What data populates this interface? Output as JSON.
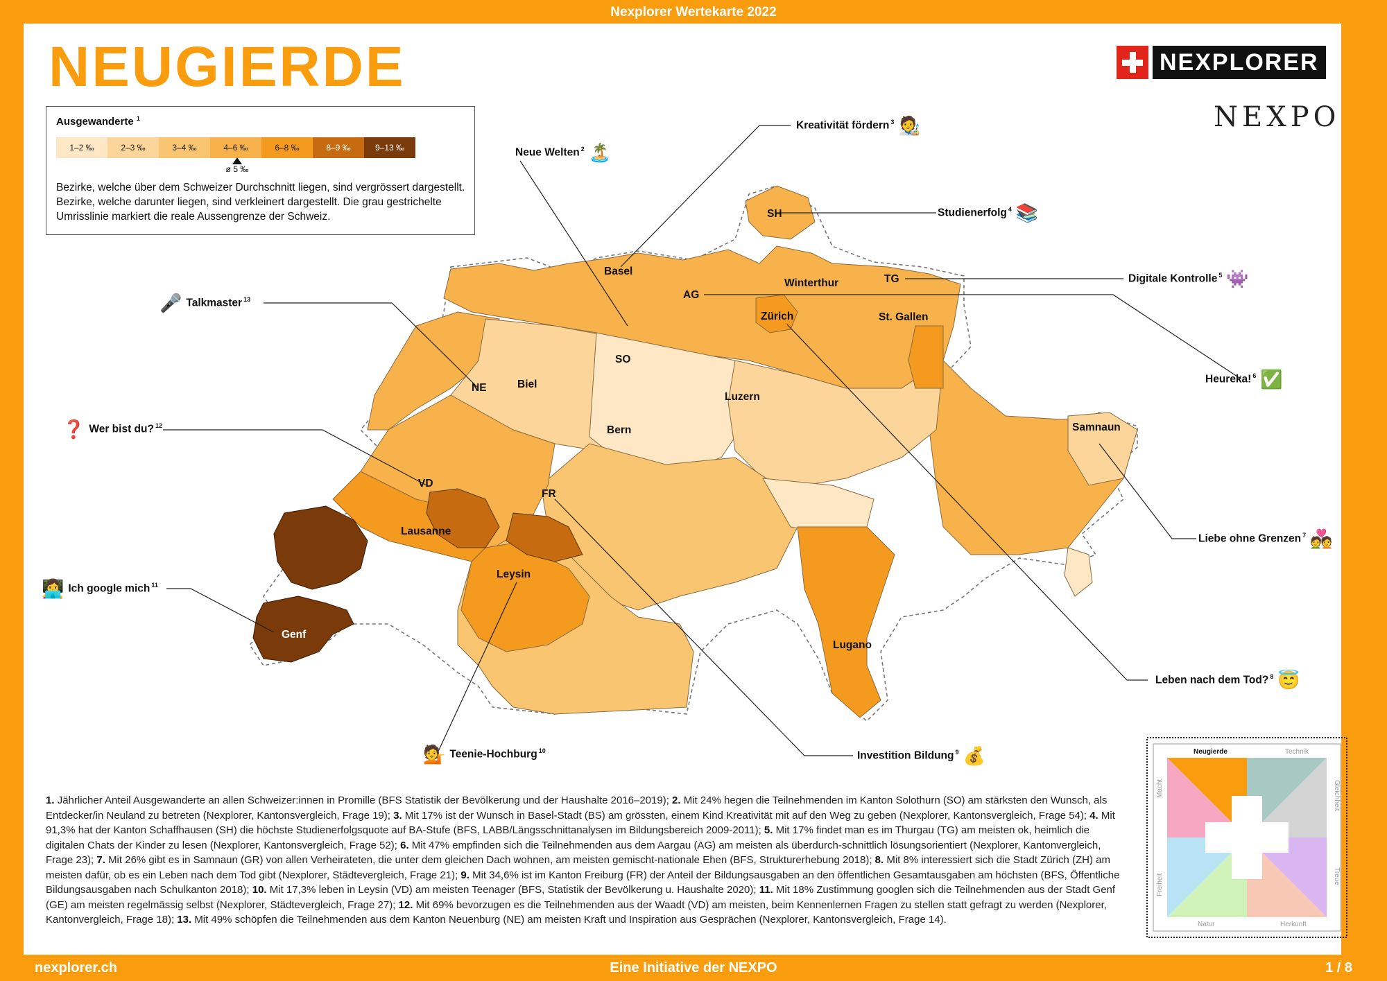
{
  "header": {
    "top_title": "Nexplorer Wertekarte 2022",
    "page_title": "NEUGIERDE"
  },
  "brand": {
    "name": "NEXPLORER",
    "secondary": "NEXPO"
  },
  "legend": {
    "title": "Ausgewanderte",
    "title_note": "1",
    "classes": [
      {
        "label": "1–2 ‰",
        "color": "#FDE7C4"
      },
      {
        "label": "2–3 ‰",
        "color": "#FBD59A"
      },
      {
        "label": "3–4 ‰",
        "color": "#F9C570"
      },
      {
        "label": "4–6 ‰",
        "color": "#F7B24C"
      },
      {
        "label": "6–8 ‰",
        "color": "#F39A1F"
      },
      {
        "label": "8–9 ‰",
        "color": "#C66B10"
      },
      {
        "label": "9–13 ‰",
        "color": "#7A3A0A"
      }
    ],
    "average_label": "ø 5 ‰",
    "description": "Bezirke, welche über dem Schweizer Durchschnitt liegen, sind vergrössert dargestellt. Bezirke, welche darunter liegen, sind verkleinert dargestellt. Die grau gestrichelte Umrisslinie markiert die reale Aussengrenze der Schweiz."
  },
  "map_labels": {
    "basel": "Basel",
    "sh": "SH",
    "ag": "AG",
    "winterthur": "Winterthur",
    "tg": "TG",
    "zurich": "Zürich",
    "stgallen": "St. Gallen",
    "so": "SO",
    "ne": "NE",
    "biel": "Biel",
    "luzern": "Luzern",
    "bern": "Bern",
    "samnaun": "Samnaun",
    "vd": "VD",
    "fr": "FR",
    "lausanne": "Lausanne",
    "leysin": "Leysin",
    "genf": "Genf",
    "lugano": "Lugano"
  },
  "callouts": {
    "kreativitaet": {
      "label": "Kreativität fördern",
      "note": "3",
      "emoji": "🧑‍🎨"
    },
    "neue_welten": {
      "label": "Neue Welten",
      "note": "2",
      "emoji": "🏝️"
    },
    "studienerfolg": {
      "label": "Studienerfolg",
      "note": "4",
      "emoji": "📚"
    },
    "digitale": {
      "label": "Digitale Kontrolle",
      "note": "5",
      "emoji": "👾"
    },
    "talkmaster": {
      "label": "Talkmaster",
      "note": "13",
      "emoji": "🎤"
    },
    "heureka": {
      "label": "Heureka!",
      "note": "6",
      "emoji": "✅"
    },
    "wer_bist": {
      "label": "Wer bist du?",
      "note": "12",
      "emoji": "❓"
    },
    "liebe": {
      "label": "Liebe ohne Grenzen",
      "note": "7",
      "emoji": "💑"
    },
    "google": {
      "label": "Ich google mich",
      "note": "11",
      "emoji": "👩‍💻"
    },
    "leben": {
      "label": "Leben nach dem Tod?",
      "note": "8",
      "emoji": "😇"
    },
    "teenie": {
      "label": "Teenie-Hochburg",
      "note": "10",
      "emoji": "💁"
    },
    "investition": {
      "label": "Investition Bildung",
      "note": "9",
      "emoji": "💰"
    }
  },
  "footnotes": [
    {
      "n": "1.",
      "text": "Jährlicher Anteil Ausgewanderte an allen Schweizer:innen in Promille (BFS Statistik der Bevölkerung und der Haushalte 2016–2019);"
    },
    {
      "n": "2.",
      "text": "Mit 24% hegen die Teilnehmenden im Kanton Solothurn (SO) am stärksten den Wunsch, als Entdecker/in Neuland zu betreten (Nexplorer, Kantonsvergleich, Frage 19);"
    },
    {
      "n": "3.",
      "text": "Mit 17% ist der Wunsch in Basel-Stadt (BS) am grössten, einem Kind Kreativität mit auf den Weg zu geben (Nexplorer, Kantonsvergleich, Frage 54);"
    },
    {
      "n": "4.",
      "text": "Mit 91,3% hat der Kanton Schaffhausen (SH) die höchste Studienerfolgsquote auf BA-Stufe (BFS, LABB/Längsschnittanalysen im Bildungsbereich 2009-2011);"
    },
    {
      "n": "5.",
      "text": "Mit 17% findet man es im Thurgau (TG) am meisten ok, heimlich die digitalen Chats der Kinder zu lesen (Nexplorer, Kantonsvergleich, Frage 52);"
    },
    {
      "n": "6.",
      "text": "Mit 47% empfinden sich die Teilnehmenden aus dem Aargau (AG) am meisten als überdurch-schnittlich lösungsorientiert (Nexplorer, Kantonvergleich, Frage 23);"
    },
    {
      "n": "7.",
      "text": "Mit 26% gibt es in Samnaun (GR) von allen Verheirateten, die unter dem gleichen Dach wohnen, am meisten gemischt-nationale Ehen (BFS, Strukturerhebung 2018);"
    },
    {
      "n": "8.",
      "text": "Mit 8% interessiert sich die Stadt Zürich (ZH) am meisten dafür, ob es ein Leben nach dem Tod gibt (Nexplorer, Städtevergleich, Frage 21);"
    },
    {
      "n": "9.",
      "text": "Mit 34,6% ist im Kanton Freiburg (FR) der Anteil der Bildungsausgaben an den öffentlichen Gesamtausgaben am höchsten (BFS, Öffentliche Bildungsausgaben nach Schulkanton 2018);"
    },
    {
      "n": "10.",
      "text": "Mit 17,3% leben in Leysin (VD) am meisten Teenager (BFS, Statistik der Bevölkerung u. Haushalte 2020);"
    },
    {
      "n": "11.",
      "text": "Mit 18% Zustimmung googlen sich die Teilnehmenden aus der Stadt Genf (GE) am meisten regelmässig selbst (Nexplorer, Städtevergleich, Frage 27);"
    },
    {
      "n": "12.",
      "text": "Mit 69% bevorzugen es die Teilnehmenden aus der Waadt (VD) am meisten, beim Kennenlernen Fragen zu stellen statt gefragt zu werden (Nexplorer, Kantonvergleich, Frage 18);"
    },
    {
      "n": "13.",
      "text": "Mit 49% schöpfen die Teilnehmenden aus dem Kanton Neuenburg (NE) am meisten Kraft und Inspiration aus Gesprächen (Nexplorer, Kantonsvergleich, Frage 14)."
    }
  ],
  "compass": {
    "labels": {
      "top_left": "Neugierde",
      "top_right": "Technik",
      "left_top": "Macht",
      "right_top": "Gleichheit",
      "left_bottom": "Freiheit",
      "right_bottom": "Treue",
      "bottom_left": "Natur",
      "bottom_right": "Herkunft"
    },
    "colors": {
      "neugierde": "#F99D0F",
      "technik": "#A7C9C3",
      "macht": "#F6A7C1",
      "gleichheit": "#D4D4D4",
      "freiheit": "#B7E3F5",
      "treue": "#D9B6F2",
      "natur": "#CFF2B9",
      "herkunft": "#F7C9B4"
    }
  },
  "footer": {
    "url": "nexplorer.ch",
    "center": "Eine Initiative der NEXPO",
    "page": "1 / 8"
  }
}
